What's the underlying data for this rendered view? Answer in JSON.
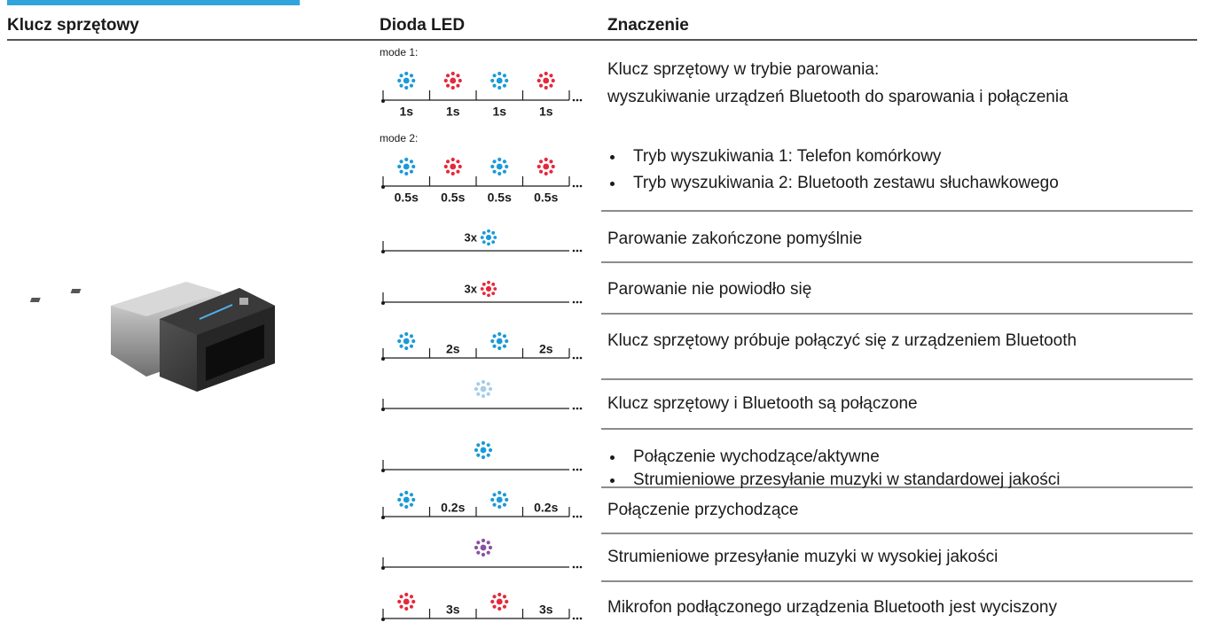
{
  "header": {
    "device": "Klucz sprzętowy",
    "led": "Dioda LED",
    "meaning": "Znaczenie"
  },
  "rows": [
    {
      "led": {
        "modes": [
          {
            "label": "mode 1:",
            "slots": [
              {
                "color": "#1b9ad7",
                "duration": "1s"
              },
              {
                "color": "#e5283a",
                "duration": "1s"
              },
              {
                "color": "#1b9ad7",
                "duration": "1s"
              },
              {
                "color": "#e5283a",
                "duration": "1s"
              }
            ]
          },
          {
            "label": "mode 2:",
            "slots": [
              {
                "color": "#1b9ad7",
                "duration": "0.5s"
              },
              {
                "color": "#e5283a",
                "duration": "0.5s"
              },
              {
                "color": "#1b9ad7",
                "duration": "0.5s"
              },
              {
                "color": "#e5283a",
                "duration": "0.5s"
              }
            ]
          }
        ]
      },
      "meaning": {
        "title": "Klucz sprzętowy w trybie parowania:",
        "text": "wyszukiwanie urządzeń Bluetooth do sparowania i połączenia",
        "bullets": [
          "Tryb wyszukiwania 1: Telefon komórkowy",
          "Tryb wyszukiwania 2: Bluetooth zestawu słuchawkowego"
        ]
      }
    },
    {
      "led": {
        "count": "3x",
        "color": "#1b9ad7"
      },
      "meaning": {
        "text": "Parowanie zakończone pomyślnie"
      }
    },
    {
      "led": {
        "count": "3x",
        "color": "#e5283a"
      },
      "meaning": {
        "text": "Parowanie nie powiodło się"
      }
    },
    {
      "led": {
        "slots": [
          {
            "color": "#1b9ad7"
          },
          {
            "duration": "2s"
          },
          {
            "color": "#1b9ad7"
          },
          {
            "duration": "2s"
          }
        ]
      },
      "meaning": {
        "text": "Klucz sprzętowy próbuje połączyć się z urządzeniem Bluetooth"
      }
    },
    {
      "led": {
        "color": "#a5cdea"
      },
      "meaning": {
        "text": "Klucz sprzętowy i Bluetooth są połączone"
      }
    },
    {
      "led": {
        "color": "#1b9ad7"
      },
      "meaning": {
        "bullets": [
          "Połączenie wychodzące/aktywne",
          "Strumieniowe przesyłanie muzyki w standardowej jakości"
        ]
      }
    },
    {
      "led": {
        "slots": [
          {
            "color": "#1b9ad7"
          },
          {
            "duration": "0.2s"
          },
          {
            "color": "#1b9ad7"
          },
          {
            "duration": "0.2s"
          }
        ]
      },
      "meaning": {
        "text": "Połączenie przychodzące"
      }
    },
    {
      "led": {
        "color": "#8b4fa5"
      },
      "meaning": {
        "text": "Strumieniowe przesyłanie muzyki w wysokiej jakości"
      }
    },
    {
      "led": {
        "slots": [
          {
            "color": "#e5283a"
          },
          {
            "duration": "3s"
          },
          {
            "color": "#e5283a"
          },
          {
            "duration": "3s"
          }
        ]
      },
      "meaning": {
        "text": "Mikrofon podłączonego urządzenia Bluetooth jest wyciszony"
      }
    }
  ]
}
